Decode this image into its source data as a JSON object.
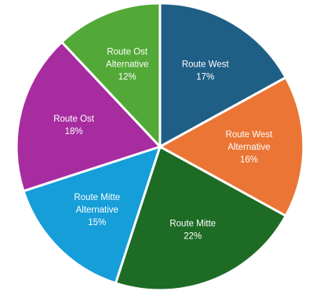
{
  "chart_data": {
    "type": "pie",
    "title": "",
    "slices": [
      {
        "label": "Route West",
        "value": 17,
        "value_label": "17%",
        "color": "#1f5f86"
      },
      {
        "label": "Route West Alternative",
        "value": 16,
        "value_label": "16%",
        "color": "#ea7535"
      },
      {
        "label": "Route Mitte",
        "value": 22,
        "value_label": "22%",
        "color": "#1e6b25"
      },
      {
        "label": "Route Mitte Alternative",
        "value": 15,
        "value_label": "15%",
        "color": "#169ed8"
      },
      {
        "label": "Route Ost",
        "value": 18,
        "value_label": "18%",
        "color": "#a72c9f"
      },
      {
        "label": "Route Ost Alternative",
        "value": 12,
        "value_label": "12%",
        "color": "#52a937"
      }
    ],
    "label_lines": [
      [
        "Route West"
      ],
      [
        "Route West",
        "Alternative"
      ],
      [
        "Route Mitte"
      ],
      [
        "Route Mitte",
        "Alternative"
      ],
      [
        "Route Ost"
      ],
      [
        "Route Ost",
        "Alternative"
      ]
    ],
    "legend": "none",
    "start_angle_deg": 0,
    "direction": "clockwise"
  }
}
